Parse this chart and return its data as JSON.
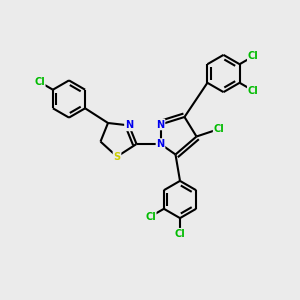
{
  "bg_color": "#ebebeb",
  "bond_color": "#000000",
  "bond_width": 1.5,
  "atom_colors": {
    "Cl": "#00bb00",
    "N": "#0000ee",
    "S": "#cccc00",
    "C": "#000000"
  },
  "font_size": 7.0
}
